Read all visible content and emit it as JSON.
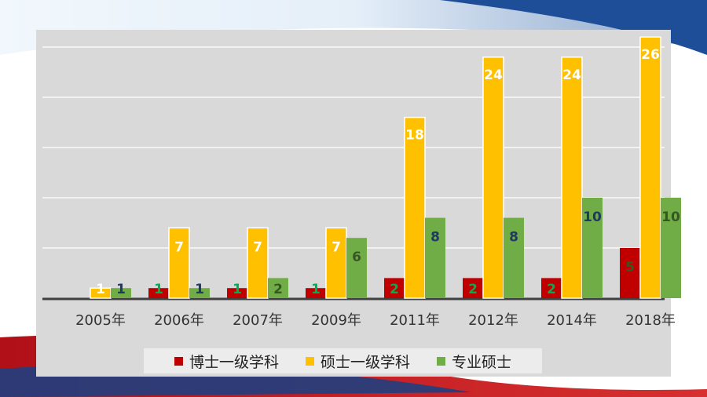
{
  "colors": {
    "doctor": "#c00000",
    "master": "#ffc000",
    "professional": "#70ad47",
    "label_white": "#ffffff",
    "label_green": "#00b050",
    "label_blue": "#1f3864",
    "label_darkgreen": "#375623",
    "grid": "#f2f2f2",
    "axis": "#404040"
  },
  "chart_data": {
    "type": "bar",
    "title": "",
    "xlabel": "",
    "ylabel": "",
    "ylim": [
      0,
      30
    ],
    "grid": true,
    "legend_position": "bottom",
    "categories": [
      "2005年",
      "2006年",
      "2007年",
      "2009年",
      "2011年",
      "2012年",
      "2014年",
      "2018年"
    ],
    "series": [
      {
        "name": "博士一级学科",
        "color": "#c00000",
        "values": [
          0,
          1,
          1,
          1,
          2,
          2,
          2,
          5
        ],
        "labels": [
          "",
          "1",
          "1",
          "1",
          "2",
          "2",
          "2",
          "5"
        ]
      },
      {
        "name": "硕士一级学科",
        "color": "#ffc000",
        "values": [
          1,
          7,
          7,
          7,
          18,
          24,
          24,
          26
        ],
        "labels": [
          "1",
          "7",
          "7",
          "7",
          "18",
          "24",
          "24",
          "26"
        ]
      },
      {
        "name": "专业硕士",
        "color": "#70ad47",
        "values": [
          1,
          1,
          2,
          6,
          8,
          8,
          10,
          10
        ],
        "labels": [
          "1",
          "1",
          "2",
          "6",
          "8",
          "8",
          "10",
          "10"
        ]
      }
    ]
  }
}
